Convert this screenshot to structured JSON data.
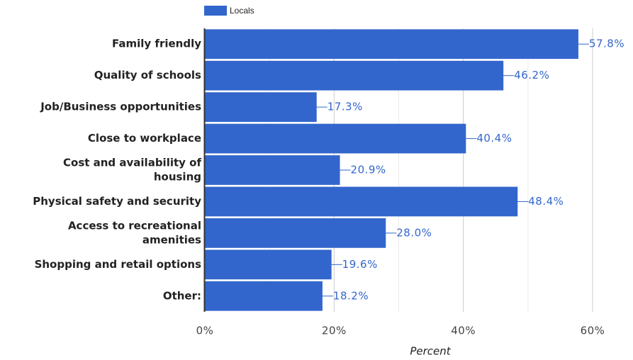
{
  "chart_data": {
    "type": "bar",
    "orientation": "horizontal",
    "categories": [
      [
        "Family friendly"
      ],
      [
        "Quality of schools"
      ],
      [
        "Job/Business opportunities"
      ],
      [
        "Close to workplace"
      ],
      [
        "Cost and availability of",
        "housing"
      ],
      [
        "Physical safety and security"
      ],
      [
        "Access to recreational",
        "amenities"
      ],
      [
        "Shopping and retail options"
      ],
      [
        "Other:"
      ]
    ],
    "series": [
      {
        "name": "Locals",
        "color": "#3366cc",
        "values": [
          57.8,
          46.2,
          17.3,
          40.4,
          20.9,
          48.4,
          28.0,
          19.6,
          18.2
        ],
        "labels": [
          "57.8%",
          "46.2%",
          "17.3%",
          "40.4%",
          "20.9%",
          "48.4%",
          "28.0%",
          "19.6%",
          "18.2%"
        ]
      }
    ],
    "xlabel": "Percent",
    "xlim": [
      0,
      60
    ],
    "xticks": [
      0,
      20,
      40,
      60
    ],
    "xtick_labels": [
      "0%",
      "20%",
      "40%",
      "60%"
    ],
    "grid": true,
    "legend_position": "top-left"
  }
}
